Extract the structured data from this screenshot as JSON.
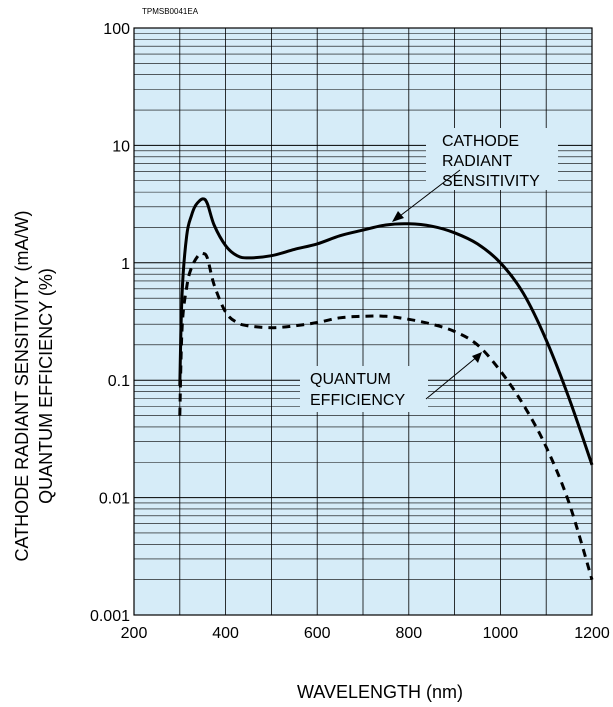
{
  "chart_data": {
    "type": "line",
    "figure_code": "TPMSB0041EA",
    "xlabel": "WAVELENGTH (nm)",
    "ylabel_line1": "CATHODE RADIANT SENSITIVITY (mA/W)",
    "ylabel_line2": "QUANTUM EFFICIENCY (%)",
    "xlim": [
      200,
      1200
    ],
    "ylim": [
      0.001,
      100
    ],
    "yscale": "log",
    "grid": true,
    "background_color": "#d6ecf8",
    "x_ticks": [
      "200",
      "400",
      "600",
      "800",
      "1000",
      "1200"
    ],
    "x_tick_values": [
      200,
      400,
      600,
      800,
      1000,
      1200
    ],
    "y_ticks": [
      "0.001",
      "0.01",
      "0.1",
      "1",
      "10",
      "100"
    ],
    "y_tick_values": [
      0.001,
      0.01,
      0.1,
      1,
      10,
      100
    ],
    "series": [
      {
        "annotation": [
          "CATHODE",
          "RADIANT",
          "SENSITIVITY"
        ],
        "style": "solid",
        "color": "#000000",
        "points": [
          [
            300,
            0.09
          ],
          [
            305,
            0.55
          ],
          [
            315,
            1.7
          ],
          [
            325,
            2.5
          ],
          [
            335,
            3.1
          ],
          [
            350,
            3.5
          ],
          [
            360,
            3.2
          ],
          [
            375,
            2.1
          ],
          [
            400,
            1.4
          ],
          [
            425,
            1.15
          ],
          [
            450,
            1.1
          ],
          [
            500,
            1.15
          ],
          [
            550,
            1.3
          ],
          [
            600,
            1.45
          ],
          [
            650,
            1.7
          ],
          [
            700,
            1.9
          ],
          [
            750,
            2.1
          ],
          [
            800,
            2.15
          ],
          [
            850,
            2.05
          ],
          [
            900,
            1.8
          ],
          [
            950,
            1.45
          ],
          [
            1000,
            1.0
          ],
          [
            1050,
            0.55
          ],
          [
            1100,
            0.22
          ],
          [
            1150,
            0.07
          ],
          [
            1200,
            0.019
          ]
        ]
      },
      {
        "annotation": [
          "QUANTUM",
          "EFFICIENCY"
        ],
        "style": "dashed",
        "color": "#000000",
        "points": [
          [
            300,
            0.05
          ],
          [
            305,
            0.28
          ],
          [
            315,
            0.62
          ],
          [
            325,
            0.9
          ],
          [
            340,
            1.15
          ],
          [
            350,
            1.2
          ],
          [
            360,
            1.1
          ],
          [
            375,
            0.65
          ],
          [
            400,
            0.38
          ],
          [
            425,
            0.31
          ],
          [
            450,
            0.29
          ],
          [
            500,
            0.28
          ],
          [
            550,
            0.29
          ],
          [
            600,
            0.31
          ],
          [
            650,
            0.34
          ],
          [
            700,
            0.35
          ],
          [
            750,
            0.35
          ],
          [
            800,
            0.33
          ],
          [
            850,
            0.3
          ],
          [
            900,
            0.26
          ],
          [
            950,
            0.2
          ],
          [
            1000,
            0.12
          ],
          [
            1050,
            0.062
          ],
          [
            1100,
            0.027
          ],
          [
            1150,
            0.009
          ],
          [
            1200,
            0.002
          ]
        ]
      }
    ]
  }
}
